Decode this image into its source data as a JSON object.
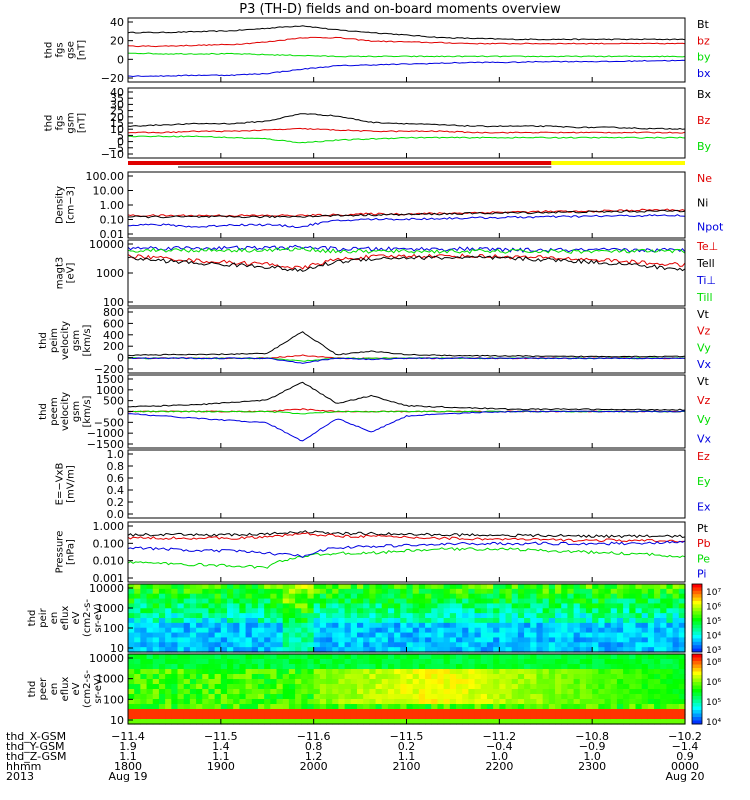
{
  "title": "P3 (TH-D) fields and on-board moments overview",
  "colors": {
    "black": "#000000",
    "red": "#e00000",
    "green": "#00dd00",
    "blue": "#0000e0",
    "yellow": "#ffff00"
  },
  "chart_data": [
    {
      "type": "line",
      "ylabel": [
        "thd",
        "fgs",
        "gse",
        "[nT]"
      ],
      "yticks": [
        "40",
        "20",
        "0",
        "−20"
      ],
      "ylim": [
        -30,
        45
      ],
      "series": [
        {
          "name": "Bt",
          "color": "black",
          "values": [
            28,
            28,
            29,
            30,
            33,
            36,
            31,
            28,
            25,
            22,
            21,
            20,
            20,
            20,
            20,
            20,
            20
          ]
        },
        {
          "name": "bz",
          "color": "red",
          "values": [
            12,
            12,
            13,
            14,
            17,
            22,
            22,
            18,
            17,
            16,
            15,
            15,
            15,
            15,
            15,
            15,
            15
          ]
        },
        {
          "name": "by",
          "color": "green",
          "values": [
            4,
            3,
            3,
            3,
            2,
            1,
            0,
            0,
            0,
            0,
            0,
            0,
            0,
            0,
            0,
            0,
            0
          ]
        },
        {
          "name": "bx",
          "color": "blue",
          "values": [
            -23,
            -23,
            -22,
            -22,
            -20,
            -15,
            -11,
            -10,
            -9,
            -8,
            -7,
            -7,
            -6,
            -6,
            -6,
            -5,
            -5
          ]
        }
      ]
    },
    {
      "type": "line",
      "ylabel": [
        "thd",
        "fgs",
        "gsm",
        "[nT]"
      ],
      "yticks": [
        "40",
        "35",
        "30",
        "25",
        "20",
        "15",
        "10",
        "5",
        "0",
        "−5",
        "−10"
      ],
      "ylim": [
        -15,
        40
      ],
      "series": [
        {
          "name": "Bx",
          "color": "black",
          "values": [
            10,
            11,
            12,
            12,
            14,
            20,
            18,
            13,
            12,
            11,
            10,
            10,
            10,
            9,
            9,
            8,
            8
          ]
        },
        {
          "name": "Bz",
          "color": "red",
          "values": [
            5,
            5,
            6,
            6,
            7,
            8,
            7,
            6,
            6,
            6,
            5,
            5,
            5,
            5,
            5,
            5,
            5
          ]
        },
        {
          "name": "By",
          "color": "green",
          "values": [
            2,
            2,
            2,
            1,
            0,
            -3,
            -1,
            0,
            1,
            1,
            1,
            1,
            1,
            1,
            1,
            1,
            1
          ]
        }
      ]
    },
    {
      "type": "line",
      "log_scale": true,
      "ylabel": [
        "Density",
        "[cm−3]"
      ],
      "yticks": [
        "100.00",
        "10.00",
        "1.00",
        "0.10",
        "0.01"
      ],
      "ylim": [
        0.003,
        300
      ],
      "series": [
        {
          "name": "Ne",
          "color": "red",
          "values": [
            0.15,
            0.15,
            0.15,
            0.15,
            0.15,
            0.15,
            0.17,
            0.2,
            0.2,
            0.22,
            0.25,
            0.28,
            0.3,
            0.3,
            0.35,
            0.4,
            0.4
          ]
        },
        {
          "name": "Ni",
          "color": "black",
          "values": [
            0.12,
            0.12,
            0.12,
            0.12,
            0.12,
            0.13,
            0.15,
            0.17,
            0.18,
            0.2,
            0.22,
            0.24,
            0.26,
            0.28,
            0.3,
            0.32,
            0.35
          ]
        },
        {
          "name": "Npot",
          "color": "blue",
          "values": [
            0.03,
            0.03,
            0.02,
            0.03,
            0.03,
            0.02,
            0.06,
            0.08,
            0.08,
            0.09,
            0.1,
            0.11,
            0.12,
            0.13,
            0.14,
            0.15,
            0.15
          ]
        }
      ]
    },
    {
      "type": "line",
      "log_scale": true,
      "ylabel": [
        "magt3",
        "[eV]"
      ],
      "yticks": [
        "10000",
        "1000",
        "100"
      ],
      "ylim": [
        40,
        12000
      ],
      "series": [
        {
          "name": "Te⊥",
          "color": "red",
          "values": [
            3000,
            2500,
            2000,
            1700,
            1500,
            1000,
            2200,
            2800,
            3000,
            3000,
            3000,
            2800,
            2600,
            2300,
            2000,
            1600,
            1400
          ]
        },
        {
          "name": "Tell",
          "color": "black",
          "values": [
            2500,
            2000,
            1600,
            1400,
            1200,
            800,
            1800,
            2400,
            2600,
            2600,
            2600,
            2400,
            2200,
            1900,
            1600,
            1200,
            900
          ]
        },
        {
          "name": "Ti⊥",
          "color": "blue",
          "values": [
            6000,
            6000,
            6000,
            6000,
            6000,
            6500,
            5500,
            5500,
            5500,
            5500,
            5500,
            5000,
            5000,
            5000,
            5000,
            5000,
            5000
          ]
        },
        {
          "name": "Till",
          "color": "green",
          "values": [
            5000,
            5000,
            5000,
            5000,
            5000,
            5500,
            4500,
            4500,
            4500,
            4500,
            4500,
            4500,
            4500,
            4500,
            4500,
            4500,
            4500
          ]
        }
      ]
    },
    {
      "type": "line",
      "ylabel": [
        "thd",
        "peim",
        "velocity",
        "gsm",
        "[km/s]"
      ],
      "yticks": [
        "800",
        "600",
        "400",
        "200",
        "0",
        "−200"
      ],
      "ylim": [
        -250,
        850
      ],
      "series": [
        {
          "name": "Vt",
          "color": "black",
          "values": [
            50,
            60,
            60,
            70,
            80,
            450,
            60,
            120,
            60,
            50,
            40,
            40,
            30,
            30,
            30,
            30,
            30
          ]
        },
        {
          "name": "Vz",
          "color": "red",
          "values": [
            0,
            0,
            0,
            0,
            0,
            50,
            0,
            0,
            0,
            0,
            0,
            0,
            0,
            0,
            0,
            0,
            0
          ]
        },
        {
          "name": "Vy",
          "color": "green",
          "values": [
            0,
            0,
            0,
            0,
            0,
            -50,
            0,
            0,
            0,
            0,
            0,
            0,
            0,
            0,
            0,
            0,
            0
          ]
        },
        {
          "name": "Vx",
          "color": "blue",
          "values": [
            0,
            0,
            0,
            0,
            0,
            -80,
            0,
            -20,
            0,
            0,
            0,
            0,
            0,
            0,
            0,
            0,
            0
          ]
        }
      ]
    },
    {
      "type": "line",
      "ylabel": [
        "thd",
        "peem",
        "velocity",
        "gsm",
        "[km/s]"
      ],
      "yticks": [
        "1500",
        "1000",
        "500",
        "0",
        "−500",
        "−1000",
        "−1500"
      ],
      "ylim": [
        -1600,
        1600
      ],
      "series": [
        {
          "name": "Vt",
          "color": "black",
          "values": [
            200,
            250,
            300,
            400,
            500,
            1300,
            350,
            700,
            250,
            200,
            150,
            100,
            100,
            100,
            80,
            80,
            80
          ]
        },
        {
          "name": "Vz",
          "color": "red",
          "values": [
            0,
            0,
            0,
            0,
            0,
            100,
            0,
            0,
            0,
            0,
            0,
            0,
            0,
            0,
            0,
            0,
            0
          ]
        },
        {
          "name": "Vy",
          "color": "green",
          "values": [
            0,
            0,
            0,
            0,
            0,
            -100,
            0,
            0,
            0,
            0,
            0,
            0,
            0,
            0,
            0,
            0,
            0
          ]
        },
        {
          "name": "Vx",
          "color": "blue",
          "values": [
            -100,
            -200,
            -300,
            -400,
            -500,
            -1300,
            -300,
            -900,
            -200,
            -100,
            -50,
            0,
            0,
            0,
            0,
            0,
            0
          ]
        }
      ]
    },
    {
      "type": "line",
      "ylabel": [
        "E=−VxB",
        "[mV/m]"
      ],
      "yticks": [
        "1.0",
        "0.8",
        "0.6",
        "0.4",
        "0.2",
        "0.0"
      ],
      "ylim": [
        0,
        1
      ],
      "series": [
        {
          "name": "Ez",
          "color": "red",
          "values": []
        },
        {
          "name": "Ey",
          "color": "green",
          "values": []
        },
        {
          "name": "Ex",
          "color": "blue",
          "values": []
        }
      ]
    },
    {
      "type": "line",
      "log_scale": true,
      "ylabel": [
        "Pressure",
        "[nPa]"
      ],
      "yticks": [
        "1.000",
        "0.100",
        "0.010",
        "0.001"
      ],
      "ylim": [
        0.0008,
        1.5
      ],
      "series": [
        {
          "name": "Pt",
          "color": "black",
          "values": [
            0.3,
            0.3,
            0.3,
            0.3,
            0.32,
            0.45,
            0.35,
            0.35,
            0.32,
            0.3,
            0.3,
            0.28,
            0.27,
            0.26,
            0.25,
            0.25,
            0.25
          ]
        },
        {
          "name": "Pb",
          "color": "red",
          "values": [
            0.2,
            0.2,
            0.2,
            0.2,
            0.22,
            0.35,
            0.26,
            0.25,
            0.22,
            0.2,
            0.18,
            0.17,
            0.16,
            0.15,
            0.15,
            0.14,
            0.14
          ]
        },
        {
          "name": "Pe",
          "color": "green",
          "values": [
            0.01,
            0.008,
            0.007,
            0.006,
            0.005,
            0.02,
            0.03,
            0.03,
            0.04,
            0.05,
            0.05,
            0.05,
            0.04,
            0.035,
            0.03,
            0.025,
            0.02
          ]
        },
        {
          "name": "Pi",
          "color": "blue",
          "values": [
            0.06,
            0.05,
            0.04,
            0.04,
            0.03,
            0.02,
            0.06,
            0.07,
            0.08,
            0.09,
            0.1,
            0.1,
            0.1,
            0.1,
            0.1,
            0.11,
            0.12
          ]
        }
      ]
    },
    {
      "type": "heatmap",
      "ylabel": [
        "thd",
        "peir",
        "en",
        "eflux",
        "eV",
        "(cm2-s-",
        "sr-eV)"
      ],
      "yticks": [
        "10000",
        "1000",
        "100",
        "10"
      ],
      "colorbar_ticks": [
        "10⁷",
        "10⁶",
        "10⁵",
        "10⁴",
        "10³"
      ]
    },
    {
      "type": "heatmap",
      "ylabel": [
        "thd",
        "peer",
        "en",
        "eflux",
        "eV",
        "(cm2-s-",
        "sr-eV)"
      ],
      "yticks": [
        "10000",
        "1000",
        "100",
        "10"
      ],
      "colorbar_ticks": [
        "10⁸",
        "10⁶",
        "10⁵",
        "10⁴"
      ]
    }
  ],
  "ephemeris": {
    "labels": [
      "thd_X-GSM",
      "thd_Y-GSM",
      "thd_Z-GSM",
      "hhmm",
      "2013"
    ],
    "columns": [
      [
        "−11.4",
        "1.9",
        "1.1",
        "1800",
        "Aug 19"
      ],
      [
        "−11.5",
        "1.4",
        "1.1",
        "1900",
        ""
      ],
      [
        "−11.6",
        "0.8",
        "1.2",
        "2000",
        ""
      ],
      [
        "−11.5",
        "0.2",
        "1.1",
        "2100",
        ""
      ],
      [
        "−11.2",
        "−0.4",
        "1.0",
        "2200",
        ""
      ],
      [
        "−10.8",
        "−0.9",
        "1.0",
        "2300",
        ""
      ],
      [
        "−10.2",
        "−1.4",
        "0.9",
        "0000",
        "Aug 20"
      ]
    ]
  }
}
